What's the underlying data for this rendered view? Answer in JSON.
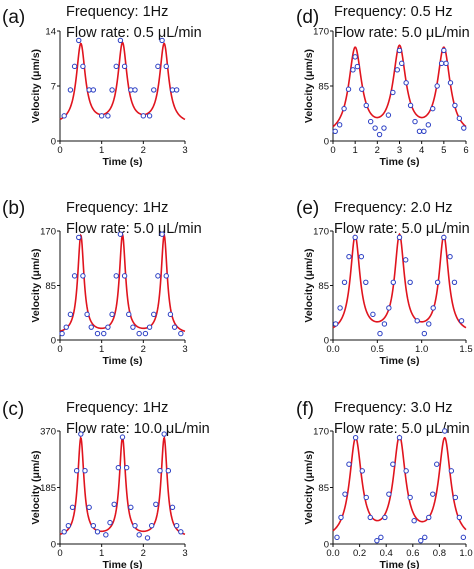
{
  "chart_data": [
    {
      "panel": "(a)",
      "type": "scatter",
      "header_lines": [
        "Frequency: 1Hz",
        "Flow rate: 0.5 μL/min"
      ],
      "xlabel": "Time (s)",
      "ylabel": "Velocity (μm/s)",
      "xlim": [
        0,
        3
      ],
      "ylim": [
        0,
        14
      ],
      "xticks": [
        0,
        1,
        2,
        3
      ],
      "yticks": [
        0,
        7,
        14
      ],
      "series": [
        {
          "type": "scatter",
          "x": [
            0.1,
            0.25,
            0.35,
            0.45,
            0.55,
            0.7,
            0.8,
            1.0,
            1.15,
            1.25,
            1.35,
            1.45,
            1.55,
            1.7,
            1.8,
            2.0,
            2.15,
            2.25,
            2.35,
            2.45,
            2.55,
            2.7,
            2.8
          ],
          "y": [
            3.2,
            6.5,
            9.5,
            12.8,
            9.5,
            6.5,
            6.5,
            3.2,
            3.2,
            6.5,
            9.5,
            12.8,
            9.5,
            6.5,
            6.5,
            3.2,
            3.2,
            6.5,
            9.5,
            12.8,
            9.5,
            6.5,
            6.5
          ]
        },
        {
          "type": "line",
          "period": 1.0,
          "peak_times": [
            0.5,
            1.5,
            2.5
          ],
          "baseline": 2.0,
          "peak": 12.2,
          "width": 0.13
        }
      ]
    },
    {
      "panel": "(b)",
      "type": "scatter",
      "header_lines": [
        "Frequency: 1Hz",
        "Flow rate: 5.0 μL/min"
      ],
      "xlabel": "Time (s)",
      "ylabel": "Velocity (μm/s)",
      "xlim": [
        0,
        3
      ],
      "ylim": [
        0,
        170
      ],
      "xticks": [
        0,
        1,
        2,
        3
      ],
      "yticks": [
        0,
        85,
        170
      ],
      "series": [
        {
          "type": "scatter",
          "x": [
            0.05,
            0.15,
            0.25,
            0.35,
            0.45,
            0.55,
            0.65,
            0.75,
            0.9,
            1.05,
            1.15,
            1.25,
            1.35,
            1.45,
            1.55,
            1.65,
            1.75,
            1.9,
            2.05,
            2.15,
            2.25,
            2.35,
            2.45,
            2.55,
            2.65,
            2.75,
            2.9
          ],
          "y": [
            10,
            20,
            40,
            100,
            160,
            100,
            40,
            20,
            10,
            10,
            20,
            40,
            100,
            165,
            100,
            40,
            20,
            10,
            10,
            20,
            40,
            100,
            165,
            100,
            40,
            20,
            10
          ]
        },
        {
          "type": "line",
          "period": 1.0,
          "peak_times": [
            0.5,
            1.5,
            2.5
          ],
          "baseline": 8,
          "peak": 162,
          "width": 0.09
        }
      ]
    },
    {
      "panel": "(c)",
      "type": "scatter",
      "header_lines": [
        "Frequency: 1Hz",
        "Flow rate: 10.0 μL/min"
      ],
      "xlabel": "Time (s)",
      "ylabel": "Velocity (μm/s)",
      "xlim": [
        0,
        3
      ],
      "ylim": [
        0,
        370
      ],
      "xticks": [
        0,
        1,
        2,
        3
      ],
      "yticks": [
        0,
        185,
        370
      ],
      "series": [
        {
          "type": "scatter",
          "x": [
            0.1,
            0.2,
            0.3,
            0.4,
            0.5,
            0.6,
            0.7,
            0.8,
            0.9,
            1.1,
            1.2,
            1.3,
            1.4,
            1.5,
            1.6,
            1.7,
            1.8,
            1.9,
            2.1,
            2.2,
            2.3,
            2.4,
            2.5,
            2.6,
            2.7,
            2.8,
            2.9
          ],
          "y": [
            40,
            60,
            120,
            240,
            360,
            240,
            120,
            60,
            40,
            30,
            70,
            130,
            250,
            350,
            250,
            120,
            60,
            30,
            20,
            60,
            130,
            240,
            360,
            240,
            120,
            60,
            40
          ]
        },
        {
          "type": "line",
          "period": 1.0,
          "peak_times": [
            0.5,
            1.5,
            2.5
          ],
          "baseline": 20,
          "peak": 345,
          "width": 0.09
        }
      ]
    },
    {
      "panel": "(d)",
      "type": "scatter",
      "header_lines": [
        "Frequency: 0.5 Hz",
        "Flow rate: 5.0 μL/min"
      ],
      "xlabel": "Time (s)",
      "ylabel": "Velocity (μm/s)",
      "xlim": [
        0,
        6
      ],
      "ylim": [
        0,
        170
      ],
      "xticks": [
        0,
        1,
        2,
        3,
        4,
        5,
        6
      ],
      "yticks": [
        0,
        85,
        170
      ],
      "series": [
        {
          "type": "scatter",
          "x": [
            0.1,
            0.3,
            0.5,
            0.7,
            0.9,
            1.0,
            1.1,
            1.3,
            1.5,
            1.7,
            1.9,
            2.1,
            2.3,
            2.5,
            2.7,
            2.9,
            3.0,
            3.1,
            3.3,
            3.5,
            3.7,
            3.9,
            4.1,
            4.3,
            4.5,
            4.7,
            4.9,
            5.0,
            5.1,
            5.3,
            5.5,
            5.7,
            5.9
          ],
          "y": [
            15,
            25,
            50,
            80,
            110,
            130,
            115,
            80,
            55,
            30,
            20,
            10,
            20,
            40,
            75,
            110,
            140,
            120,
            90,
            55,
            30,
            15,
            15,
            25,
            50,
            85,
            120,
            140,
            120,
            90,
            55,
            35,
            20
          ]
        },
        {
          "type": "line",
          "period": 2.0,
          "peak_times": [
            1.0,
            3.0,
            5.0
          ],
          "baseline": 5,
          "peak": 140,
          "width": 0.35
        }
      ]
    },
    {
      "panel": "(e)",
      "type": "scatter",
      "header_lines": [
        "Frequency: 2.0 Hz",
        "Flow rate: 5.0 μL/min"
      ],
      "xlabel": "Time (s)",
      "ylabel": "Velocity (μm/s)",
      "xlim": [
        0,
        1.5
      ],
      "ylim": [
        0,
        170
      ],
      "xticks": [
        0,
        0.5,
        1,
        1.5
      ],
      "xtick_labels": [
        "0.0",
        "0.5",
        "1.0",
        "1.5"
      ],
      "yticks": [
        0,
        85,
        170
      ],
      "series": [
        {
          "type": "scatter",
          "x": [
            0.03,
            0.08,
            0.13,
            0.18,
            0.25,
            0.32,
            0.37,
            0.45,
            0.53,
            0.58,
            0.63,
            0.68,
            0.75,
            0.82,
            0.87,
            0.95,
            1.03,
            1.08,
            1.13,
            1.18,
            1.25,
            1.32,
            1.37,
            1.45
          ],
          "y": [
            25,
            50,
            90,
            130,
            160,
            130,
            90,
            40,
            10,
            25,
            50,
            90,
            160,
            125,
            90,
            30,
            10,
            25,
            50,
            90,
            160,
            130,
            90,
            30
          ]
        },
        {
          "type": "line",
          "period": 0.5,
          "peak_times": [
            0.25,
            0.75,
            1.25
          ],
          "baseline": 8,
          "peak": 160,
          "width": 0.065
        }
      ]
    },
    {
      "panel": "(f)",
      "type": "scatter",
      "header_lines": [
        "Frequency: 3.0 Hz",
        "Flow rate: 5.0 μL/min"
      ],
      "xlabel": "Time (s)",
      "ylabel": "Velocity (μm/s)",
      "xlim": [
        0,
        1
      ],
      "ylim": [
        0,
        170
      ],
      "xticks": [
        0,
        0.2,
        0.4,
        0.6,
        0.8,
        1
      ],
      "xtick_labels": [
        "0.0",
        "0.2",
        "0.4",
        "0.6",
        "0.8",
        "1.0"
      ],
      "yticks": [
        0,
        85,
        170
      ],
      "series": [
        {
          "type": "scatter",
          "x": [
            0.03,
            0.06,
            0.09,
            0.12,
            0.17,
            0.22,
            0.25,
            0.28,
            0.33,
            0.36,
            0.39,
            0.42,
            0.45,
            0.5,
            0.55,
            0.58,
            0.61,
            0.66,
            0.69,
            0.72,
            0.75,
            0.78,
            0.84,
            0.89,
            0.92,
            0.95,
            0.98
          ],
          "y": [
            10,
            40,
            75,
            120,
            160,
            110,
            70,
            40,
            5,
            10,
            40,
            75,
            120,
            160,
            110,
            70,
            35,
            5,
            10,
            40,
            75,
            120,
            170,
            110,
            70,
            40,
            10
          ]
        },
        {
          "type": "line",
          "period": 0.3333,
          "peak_times": [
            0.17,
            0.5,
            0.84
          ],
          "baseline": 3,
          "peak": 155,
          "width": 0.055
        }
      ]
    }
  ]
}
